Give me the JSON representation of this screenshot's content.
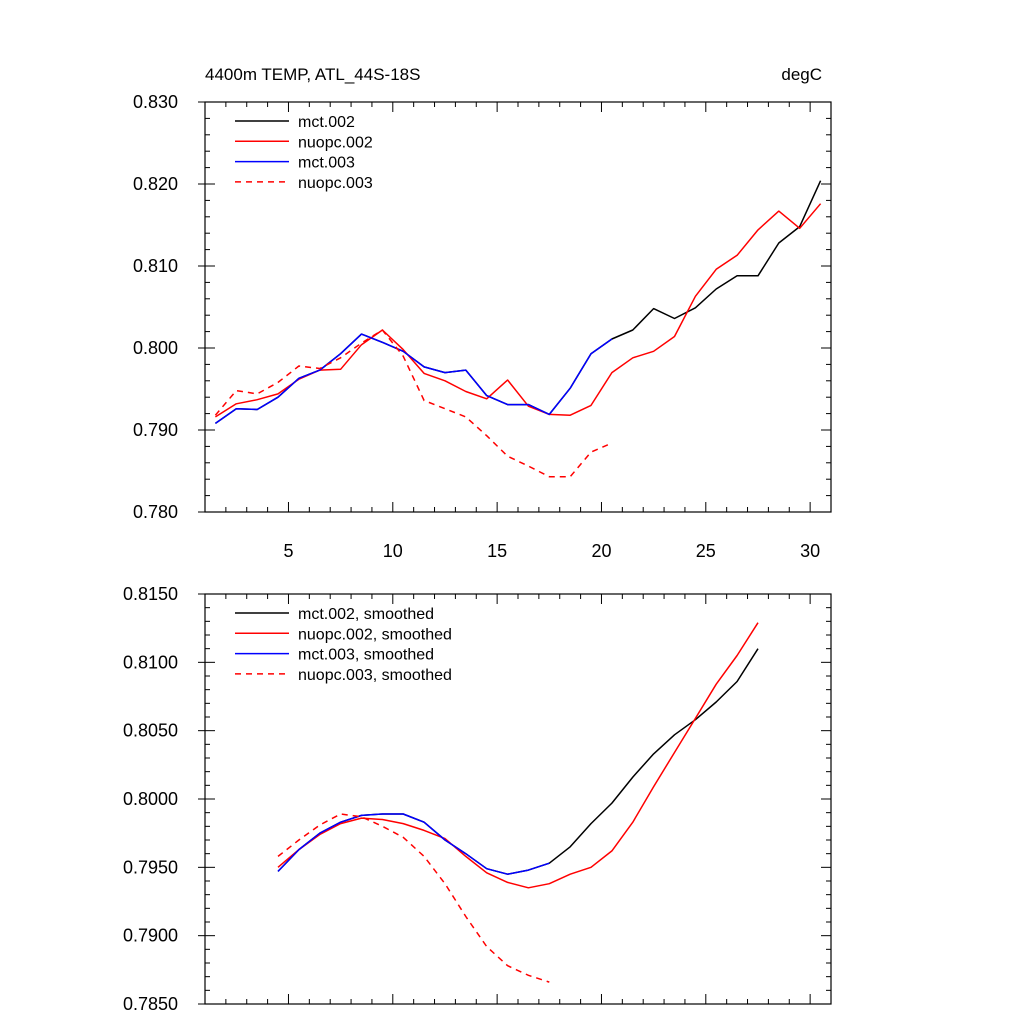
{
  "chart_data": [
    {
      "type": "line",
      "title_left": "4400m TEMP, ATL_44S-18S",
      "title_right": "degC",
      "xlim": [
        1,
        31
      ],
      "ylim": [
        0.78,
        0.83
      ],
      "x_ticks": [
        5,
        10,
        15,
        20,
        25,
        30
      ],
      "x_tick_labels": [
        "5",
        "10",
        "15",
        "20",
        "25",
        "30"
      ],
      "y_ticks": [
        0.78,
        0.79,
        0.8,
        0.81,
        0.82,
        0.83
      ],
      "y_tick_labels": [
        "0.780",
        "0.790",
        "0.800",
        "0.810",
        "0.820",
        "0.830"
      ],
      "legend_position": "top-left",
      "series": [
        {
          "name": "mct.002",
          "color": "#000000",
          "dash": "solid",
          "x": [
            1.5,
            2.5,
            3.5,
            4.5,
            5.5,
            6.5,
            7.5,
            8.5,
            9.5,
            10.5,
            11.5,
            12.5,
            13.5,
            14.5,
            15.5,
            16.5,
            17.5,
            18.5,
            19.5,
            20.5,
            21.5,
            22.5,
            23.5,
            24.5,
            25.5,
            26.5,
            27.5,
            28.5,
            29.5,
            30.5
          ],
          "values": [
            0.7908,
            0.7926,
            0.7925,
            0.794,
            0.7963,
            0.7973,
            0.7993,
            0.8017,
            0.8007,
            0.7996,
            0.7977,
            0.797,
            0.7973,
            0.7942,
            0.7931,
            0.7931,
            0.7919,
            0.7951,
            0.7993,
            0.8011,
            0.8022,
            0.8048,
            0.8036,
            0.8049,
            0.8072,
            0.8088,
            0.8088,
            0.8128,
            0.8148,
            0.8204
          ]
        },
        {
          "name": "nuopc.002",
          "color": "#ff0000",
          "dash": "solid",
          "x": [
            1.5,
            2.5,
            3.5,
            4.5,
            5.5,
            6.5,
            7.5,
            8.5,
            9.5,
            10.5,
            11.5,
            12.5,
            13.5,
            14.5,
            15.5,
            16.5,
            17.5,
            18.5,
            19.5,
            20.5,
            21.5,
            22.5,
            23.5,
            24.5,
            25.5,
            26.5,
            27.5,
            28.5,
            29.5,
            30.5
          ],
          "values": [
            0.7916,
            0.7932,
            0.7937,
            0.7944,
            0.7962,
            0.7973,
            0.7974,
            0.8004,
            0.8022,
            0.7998,
            0.7969,
            0.796,
            0.7947,
            0.7938,
            0.7961,
            0.7929,
            0.7919,
            0.7918,
            0.793,
            0.797,
            0.7988,
            0.7996,
            0.8014,
            0.8063,
            0.8096,
            0.8113,
            0.8144,
            0.8167,
            0.8146,
            0.8176
          ]
        },
        {
          "name": "mct.003",
          "color": "#0000ff",
          "dash": "solid",
          "x": [
            1.5,
            2.5,
            3.5,
            4.5,
            5.5,
            6.5,
            7.5,
            8.5,
            9.5,
            10.5,
            11.5,
            12.5,
            13.5,
            14.5,
            15.5,
            16.5,
            17.5,
            18.5,
            19.5,
            20.5
          ],
          "values": [
            0.7908,
            0.7926,
            0.7925,
            0.794,
            0.7963,
            0.7973,
            0.7993,
            0.8017,
            0.8007,
            0.7996,
            0.7977,
            0.797,
            0.7973,
            0.7942,
            0.7931,
            0.7931,
            0.7919,
            0.7951,
            0.7993,
            0.8011
          ]
        },
        {
          "name": "nuopc.003",
          "color": "#ff0000",
          "dash": "dashed",
          "x": [
            1.5,
            2.5,
            3.5,
            4.5,
            5.5,
            6.5,
            7.5,
            8.5,
            9.5,
            10.5,
            11.5,
            12.5,
            13.5,
            14.5,
            15.5,
            16.5,
            17.5,
            18.5,
            19.5,
            20.5
          ],
          "values": [
            0.7918,
            0.7948,
            0.7944,
            0.7958,
            0.7978,
            0.7975,
            0.7988,
            0.8006,
            0.8022,
            0.799,
            0.7936,
            0.7926,
            0.7916,
            0.7893,
            0.7868,
            0.7856,
            0.7843,
            0.7843,
            0.7873,
            0.7884
          ]
        }
      ]
    },
    {
      "type": "line",
      "xlim": [
        1,
        31
      ],
      "ylim": [
        0.785,
        0.815
      ],
      "x_ticks": [
        5,
        10,
        15,
        20,
        25,
        30
      ],
      "y_ticks": [
        0.785,
        0.79,
        0.795,
        0.8,
        0.805,
        0.81,
        0.815
      ],
      "y_tick_labels": [
        "0.7850",
        "0.7900",
        "0.7950",
        "0.8000",
        "0.8050",
        "0.8100",
        "0.8150"
      ],
      "legend_position": "top-left",
      "series": [
        {
          "name": "mct.002, smoothed",
          "color": "#000000",
          "dash": "solid",
          "x": [
            4.5,
            5.5,
            6.5,
            7.5,
            8.5,
            9.5,
            10.5,
            11.5,
            12.5,
            13.5,
            14.5,
            15.5,
            16.5,
            17.5,
            18.5,
            19.5,
            20.5,
            21.5,
            22.5,
            23.5,
            24.5,
            25.5,
            26.5,
            27.5
          ],
          "values": [
            0.7947,
            0.7963,
            0.7975,
            0.7983,
            0.7988,
            0.7989,
            0.7989,
            0.7983,
            0.797,
            0.796,
            0.7949,
            0.7945,
            0.7948,
            0.7953,
            0.7965,
            0.7982,
            0.7997,
            0.8016,
            0.8033,
            0.8047,
            0.8058,
            0.8071,
            0.8086,
            0.811
          ]
        },
        {
          "name": "nuopc.002, smoothed",
          "color": "#ff0000",
          "dash": "solid",
          "x": [
            4.5,
            5.5,
            6.5,
            7.5,
            8.5,
            9.5,
            10.5,
            11.5,
            12.5,
            13.5,
            14.5,
            15.5,
            16.5,
            17.5,
            18.5,
            19.5,
            20.5,
            21.5,
            22.5,
            23.5,
            24.5,
            25.5,
            26.5,
            27.5
          ],
          "values": [
            0.795,
            0.7963,
            0.7974,
            0.7982,
            0.7986,
            0.7985,
            0.7982,
            0.7977,
            0.7971,
            0.7958,
            0.7946,
            0.7939,
            0.7935,
            0.7938,
            0.7945,
            0.795,
            0.7962,
            0.7983,
            0.8009,
            0.8034,
            0.8059,
            0.8084,
            0.8105,
            0.8129
          ]
        },
        {
          "name": "mct.003, smoothed",
          "color": "#0000ff",
          "dash": "solid",
          "x": [
            4.5,
            5.5,
            6.5,
            7.5,
            8.5,
            9.5,
            10.5,
            11.5,
            12.5,
            13.5,
            14.5,
            15.5,
            16.5,
            17.5
          ],
          "values": [
            0.7947,
            0.7963,
            0.7975,
            0.7983,
            0.7988,
            0.7989,
            0.7989,
            0.7983,
            0.797,
            0.796,
            0.7949,
            0.7945,
            0.7948,
            0.7953
          ]
        },
        {
          "name": "nuopc.003, smoothed",
          "color": "#ff0000",
          "dash": "dashed",
          "x": [
            4.5,
            5.5,
            6.5,
            7.5,
            8.5,
            9.5,
            10.5,
            11.5,
            12.5,
            13.5,
            14.5,
            15.5,
            16.5,
            17.5
          ],
          "values": [
            0.7958,
            0.797,
            0.7981,
            0.7989,
            0.7987,
            0.798,
            0.7972,
            0.7958,
            0.7938,
            0.7914,
            0.7892,
            0.7878,
            0.7871,
            0.7866
          ]
        }
      ]
    }
  ]
}
